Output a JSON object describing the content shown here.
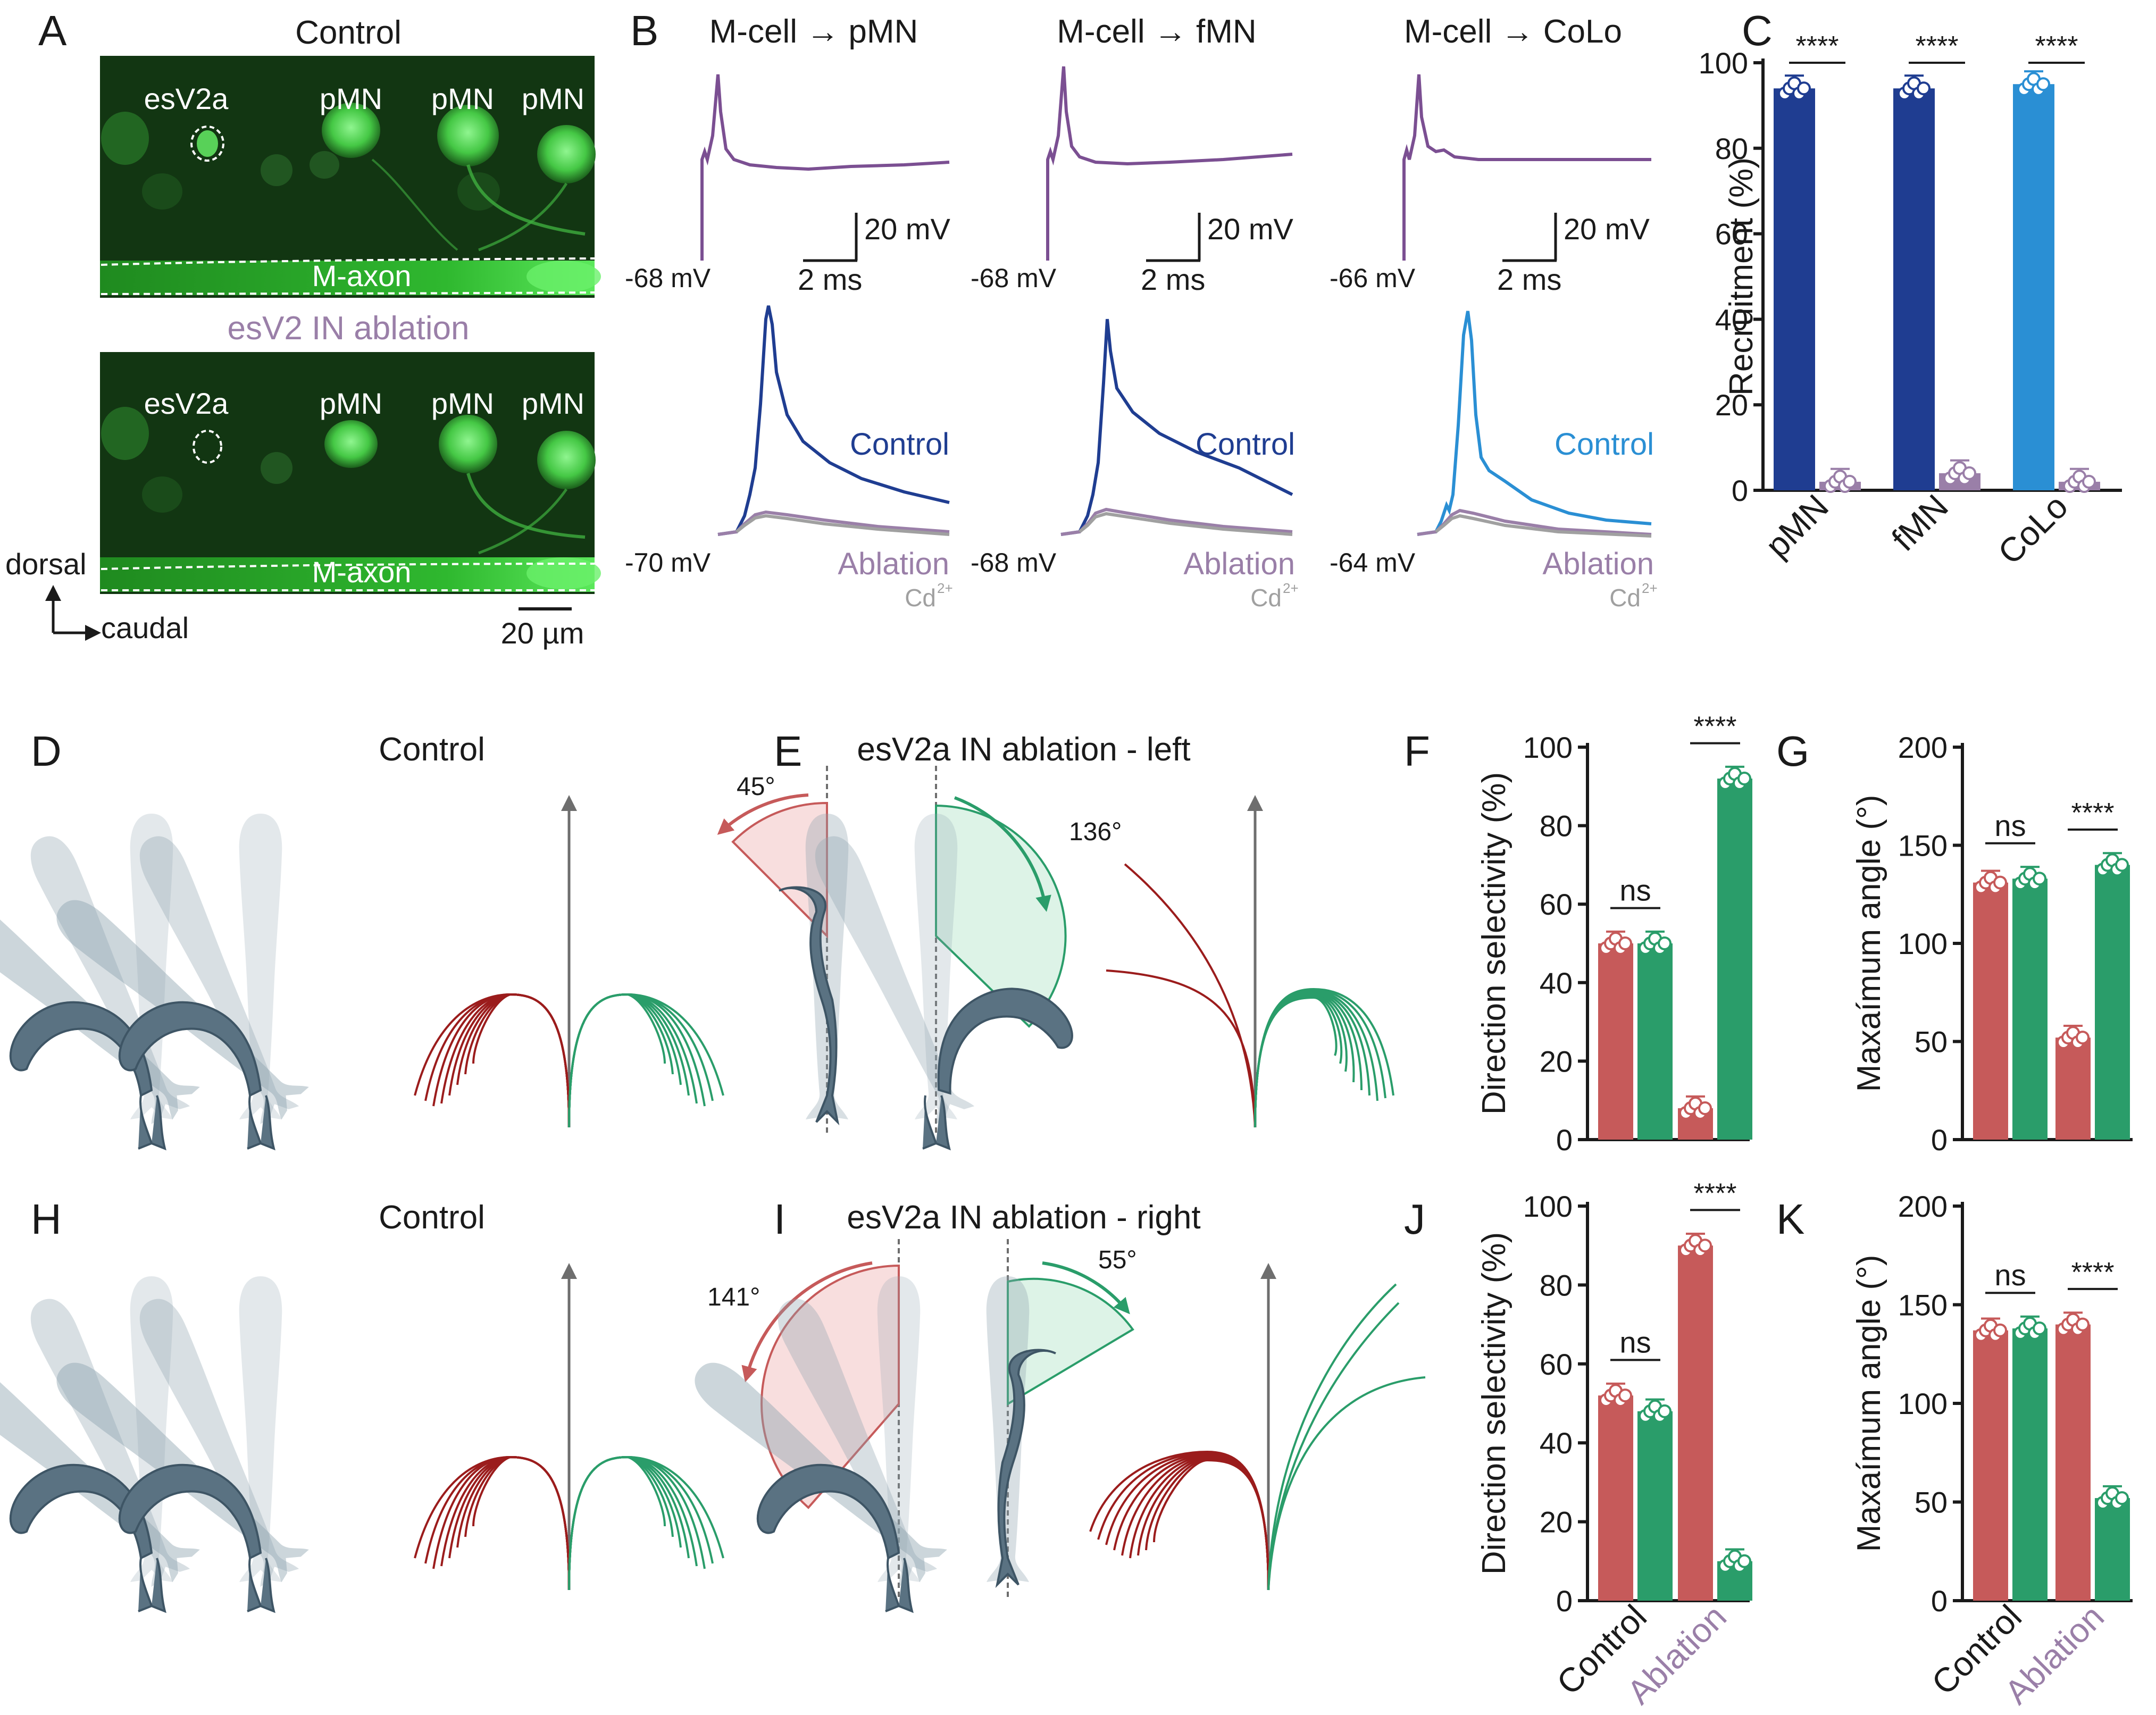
{
  "colors": {
    "dark_blue": "#1f3d91",
    "light_blue": "#2a8fd4",
    "ablation_purple": "#9a7fa8",
    "trace_purple": "#7b4f92",
    "cd_gray": "#a0a0a0",
    "red": "#c65a5a",
    "green": "#2a9d6a",
    "trajectory_red": "#9b1c1c",
    "trajectory_green": "#2a9d6a",
    "fluor_green": "#55e155",
    "fish_body": "#5a7282"
  },
  "panel_letters": [
    "A",
    "B",
    "C",
    "D",
    "E",
    "F",
    "G",
    "H",
    "I",
    "J",
    "K"
  ],
  "panel_a": {
    "top_title": "Control",
    "bottom_title": "esV2 IN ablation",
    "labels_top": [
      "esV2a",
      "pMN",
      "pMN",
      "pMN",
      "M-axon"
    ],
    "labels_bottom": [
      "esV2a",
      "pMN",
      "pMN",
      "pMN",
      "M-axon"
    ],
    "orientation_dorsal": "dorsal",
    "orientation_caudal": "caudal",
    "scalebar": "20 µm"
  },
  "panel_b": {
    "titles": [
      "M-cell → pMN",
      "M-cell → fMN",
      "M-cell → CoLo"
    ],
    "top_baselines": [
      "-68 mV",
      "-68 mV",
      "-66 mV"
    ],
    "bottom_baselines": [
      "-70 mV",
      "-68 mV",
      "-64 mV"
    ],
    "scale_mv": "20 mV",
    "scale_ms": "2 ms",
    "control_label": "Control",
    "ablation_label": "Ablation",
    "cd_label": "Cd",
    "cd_sup": "2+"
  },
  "panel_de": {
    "d_title": "Control",
    "e_title": "esV2a IN ablation - left",
    "e_angle_left": "45°",
    "e_angle_right": "136°"
  },
  "panel_hi": {
    "h_title": "Control",
    "i_title": "esV2a IN ablation - right",
    "i_angle_left": "141°",
    "i_angle_right": "55°"
  },
  "chart_data": [
    {
      "panel": "C",
      "type": "bar",
      "categories": [
        "pMN",
        "fMN",
        "CoLo"
      ],
      "series": [
        {
          "values": [
            94,
            94,
            95
          ]
        },
        {
          "values": [
            2,
            4,
            2
          ]
        }
      ],
      "ylabel": "Recruitment (%)",
      "ylim": [
        0,
        100
      ],
      "yticks": [
        "0",
        "20",
        "40",
        "60",
        "80",
        "100"
      ],
      "significance": [
        "****",
        "****",
        "****"
      ]
    },
    {
      "panel": "F",
      "type": "bar",
      "categories": [
        "Control",
        "Ablation"
      ],
      "series": [
        {
          "values": [
            50,
            8
          ]
        },
        {
          "values": [
            50,
            92
          ]
        }
      ],
      "ylabel": "Direction selectivity (%)",
      "ylim": [
        0,
        100
      ],
      "yticks": [
        "0",
        "20",
        "40",
        "60",
        "80",
        "100"
      ],
      "significance": [
        "ns",
        "****"
      ]
    },
    {
      "panel": "G",
      "type": "bar",
      "categories": [
        "Control",
        "Ablation"
      ],
      "series": [
        {
          "values": [
            131,
            52
          ]
        },
        {
          "values": [
            133,
            140
          ]
        }
      ],
      "ylabel": "Maxaímum  angle (°)",
      "ylim": [
        0,
        200
      ],
      "yticks": [
        "0",
        "50",
        "100",
        "150",
        "200"
      ],
      "significance": [
        "ns",
        "****"
      ]
    },
    {
      "panel": "J",
      "type": "bar",
      "categories": [
        "Control",
        "Ablation"
      ],
      "series": [
        {
          "values": [
            52,
            90
          ]
        },
        {
          "values": [
            48,
            10
          ]
        }
      ],
      "ylabel": "Direction selectivity (%)",
      "ylim": [
        0,
        100
      ],
      "yticks": [
        "0",
        "20",
        "40",
        "60",
        "80",
        "100"
      ],
      "significance": [
        "ns",
        "****"
      ]
    },
    {
      "panel": "K",
      "type": "bar",
      "categories": [
        "Control",
        "Ablation"
      ],
      "series": [
        {
          "values": [
            137,
            140
          ]
        },
        {
          "values": [
            138,
            52
          ]
        }
      ],
      "ylabel": "Maxaímum  angle (°)",
      "ylim": [
        0,
        200
      ],
      "yticks": [
        "0",
        "50",
        "100",
        "150",
        "200"
      ],
      "significance": [
        "ns",
        "****"
      ]
    }
  ]
}
